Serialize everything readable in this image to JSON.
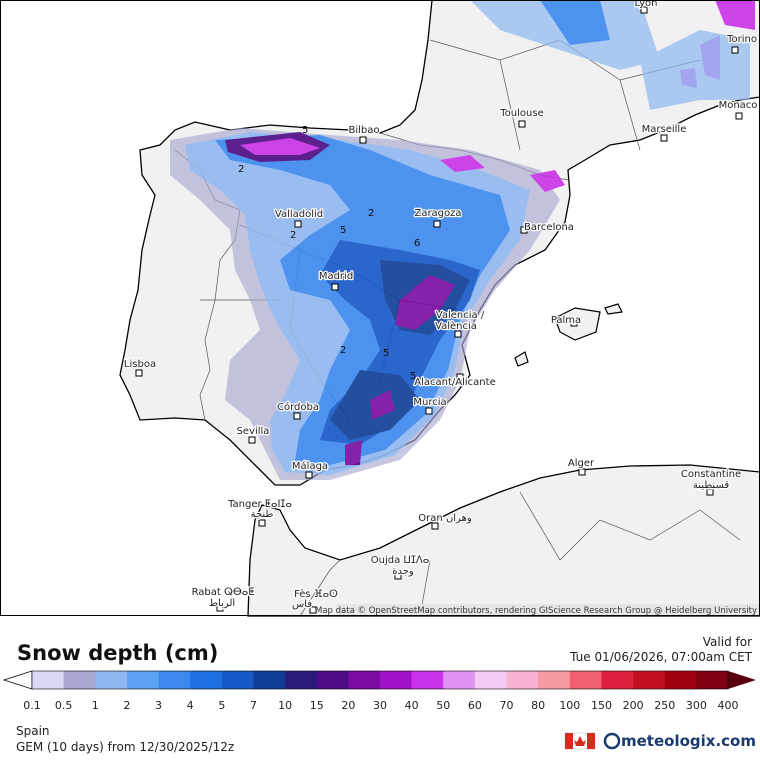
{
  "map": {
    "cities": [
      "Lyon",
      "Torino",
      "Monaco",
      "Marseille",
      "Toulouse",
      "Bilbao",
      "Valladolid",
      "Zaragoza",
      "Barcelona",
      "Madrid",
      "Valencia /",
      "València",
      "Palma",
      "Lisboa",
      "Córdoba",
      "Sevilla",
      "Alacant/Alicante",
      "Murcia",
      "Málaga",
      "Alger",
      "Constantine",
      "قسنطينة",
      "Tanger ⵟⴰⵏⵊⴰ",
      "طنجة",
      "Oran وهران",
      "Oujda ⵡⵊⴷⴰ",
      "وجدة",
      "Rabat ⵕⴱⴰⵟ",
      "الرباط",
      "Fès ⴼⴰⵙ",
      "فاس"
    ],
    "contour_labels": [
      "5",
      "2",
      "2",
      "5",
      "2",
      "6",
      "5",
      "2",
      "5"
    ],
    "attribution": "Map data © OpenStreetMap contributors, rendering GIScience Research Group @ Heidelberg University"
  },
  "legend": {
    "title": "Snow depth (cm)",
    "valid_label": "Valid for",
    "valid_time": "Tue 01/06/2026, 07:00am CET",
    "ticks": [
      "0.1",
      "0.5",
      "1",
      "2",
      "3",
      "4",
      "5",
      "7",
      "10",
      "15",
      "20",
      "30",
      "40",
      "50",
      "60",
      "70",
      "80",
      "100",
      "150",
      "200",
      "250",
      "300",
      "400"
    ],
    "colors": [
      "#d8d8f6",
      "#a8a8d2",
      "#90b8f0",
      "#5ea2f2",
      "#3c88ee",
      "#1e70e0",
      "#1658c8",
      "#0e3e96",
      "#2c1a7a",
      "#4c0a84",
      "#7a0ca2",
      "#a012c8",
      "#c832e8",
      "#e092f2",
      "#f4caf6",
      "#f8b2d2",
      "#f89aa2",
      "#f06070",
      "#e02040",
      "#c01020",
      "#a00010",
      "#800012"
    ],
    "under_color": "#ffffff",
    "over_color": "#5a0010"
  },
  "footer": {
    "region": "Spain",
    "model": "GEM (10 days) from  12/30/2025/12z",
    "brand": "meteologix.com"
  }
}
